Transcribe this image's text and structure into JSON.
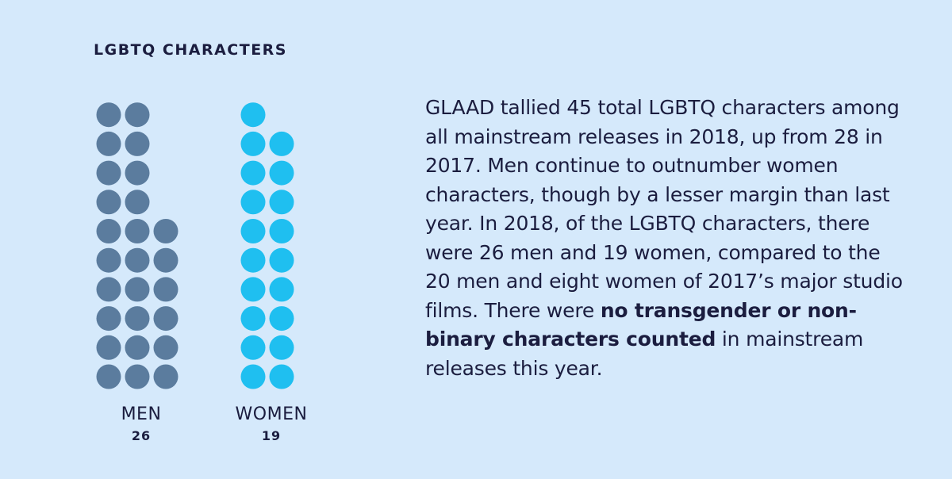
{
  "title": "LGBTQ CHARACTERS",
  "colors": {
    "background": "#d5e9fb",
    "men": "#5b7c9e",
    "women": "#1fbff0",
    "text": "#1b1d3f"
  },
  "chart_data": {
    "type": "dot-matrix",
    "categories": [
      "MEN",
      "WOMEN"
    ],
    "values": [
      26,
      19
    ],
    "value_labels": [
      "26",
      "19"
    ],
    "colors": [
      "#5b7c9e",
      "#1fbff0"
    ]
  },
  "description": {
    "part1": "GLAAD tallied 45 total LGBTQ characters among all mainstream releases in 2018, up from 28 in 2017. Men continue to outnumber women characters, though by a lesser margin than last year. In 2018, of the LGBTQ characters, there were 26 men and 19 women, compared to the 20 men and eight women of 2017’s major studio films. There were ",
    "bold": "no transgender or non-binary characters counted",
    "part2": " in mainstream releases this year."
  }
}
